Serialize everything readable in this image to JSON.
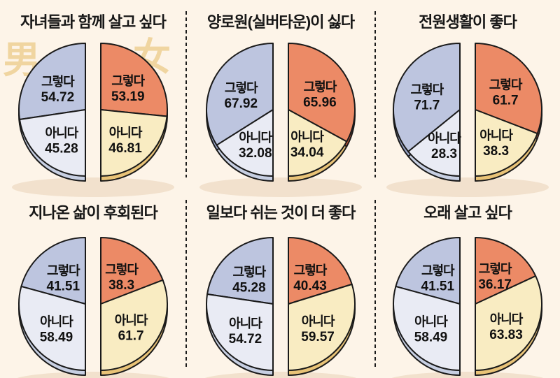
{
  "legend": {
    "male_label": "男",
    "female_label": "女"
  },
  "colors": {
    "background": "#fdf4e8",
    "outline": "#1a1a1a",
    "title_text": "#171717",
    "label_text": "#111111",
    "glyph": "#f0d5a0",
    "shadow": "#f2e1cd",
    "male_yes": "#bdc5df",
    "male_no": "#e9ebf4",
    "male_yes_side": "#9aa5c9",
    "male_no_side": "#c7cfe2",
    "female_yes": "#ec8a66",
    "female_no": "#f9ecc2",
    "female_yes_side": "#cf5a3a",
    "female_no_side": "#e9c377"
  },
  "chart_data": [
    {
      "type": "pie",
      "title": "자녀들과 함께 살고 싶다",
      "series": [
        {
          "name": "男",
          "slices": [
            {
              "label": "그렇다",
              "value": 54.72
            },
            {
              "label": "아니다",
              "value": 45.28
            }
          ]
        },
        {
          "name": "女",
          "slices": [
            {
              "label": "그렇다",
              "value": 53.19
            },
            {
              "label": "아니다",
              "value": 46.81
            }
          ]
        }
      ]
    },
    {
      "type": "pie",
      "title": "양로원(실버타운)이 싫다",
      "series": [
        {
          "name": "男",
          "slices": [
            {
              "label": "그렇다",
              "value": 67.92
            },
            {
              "label": "아니다",
              "value": 32.08
            }
          ]
        },
        {
          "name": "女",
          "slices": [
            {
              "label": "그렇다",
              "value": 65.96
            },
            {
              "label": "아니다",
              "value": 34.04
            }
          ]
        }
      ]
    },
    {
      "type": "pie",
      "title": "전원생활이 좋다",
      "series": [
        {
          "name": "男",
          "slices": [
            {
              "label": "그렇다",
              "value": 71.7
            },
            {
              "label": "아니다",
              "value": 28.3
            }
          ]
        },
        {
          "name": "女",
          "slices": [
            {
              "label": "그렇다",
              "value": 61.7
            },
            {
              "label": "아니다",
              "value": 38.3
            }
          ]
        }
      ]
    },
    {
      "type": "pie",
      "title": "지나온 삶이 후회된다",
      "series": [
        {
          "name": "男",
          "slices": [
            {
              "label": "그렇다",
              "value": 41.51
            },
            {
              "label": "아니다",
              "value": 58.49
            }
          ]
        },
        {
          "name": "女",
          "slices": [
            {
              "label": "그렇다",
              "value": 38.3
            },
            {
              "label": "아니다",
              "value": 61.7
            }
          ]
        }
      ]
    },
    {
      "type": "pie",
      "title": "일보다 쉬는 것이 더 좋다",
      "series": [
        {
          "name": "男",
          "slices": [
            {
              "label": "그렇다",
              "value": 45.28
            },
            {
              "label": "아니다",
              "value": 54.72
            }
          ]
        },
        {
          "name": "女",
          "slices": [
            {
              "label": "그렇다",
              "value": 40.43
            },
            {
              "label": "아니다",
              "value": 59.57
            }
          ]
        }
      ]
    },
    {
      "type": "pie",
      "title": "오래 살고 싶다",
      "series": [
        {
          "name": "男",
          "slices": [
            {
              "label": "그렇다",
              "value": 41.51
            },
            {
              "label": "아니다",
              "value": 58.49
            }
          ]
        },
        {
          "name": "女",
          "slices": [
            {
              "label": "그렇다",
              "value": 36.17
            },
            {
              "label": "아니다",
              "value": 63.83
            }
          ]
        }
      ]
    }
  ]
}
